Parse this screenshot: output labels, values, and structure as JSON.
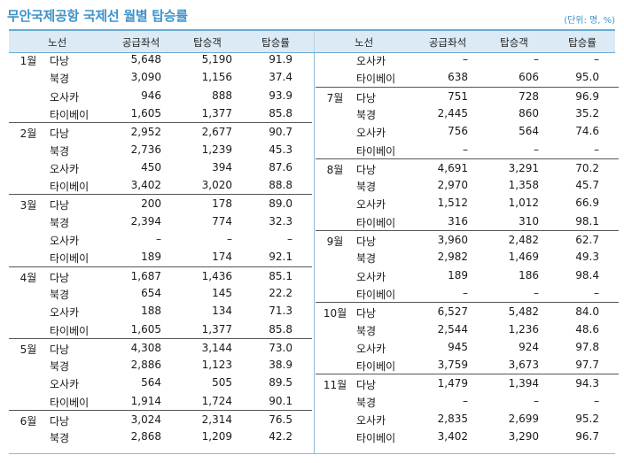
{
  "title": "무안국제공항 국제선 월별 탑승률",
  "unit": "(단위: 명, %)",
  "headers": {
    "route": "노선",
    "seats": "공급좌석",
    "passengers": "탑승객",
    "rate": "탑승률"
  },
  "left": [
    {
      "month": "1월",
      "rows": [
        {
          "route": "다낭",
          "seats": "5,648",
          "pax": "5,190",
          "rate": "91.9"
        },
        {
          "route": "북경",
          "seats": "3,090",
          "pax": "1,156",
          "rate": "37.4"
        },
        {
          "route": "오사카",
          "seats": "946",
          "pax": "888",
          "rate": "93.9"
        },
        {
          "route": "타이베이",
          "seats": "1,605",
          "pax": "1,377",
          "rate": "85.8"
        }
      ]
    },
    {
      "month": "2월",
      "rows": [
        {
          "route": "다낭",
          "seats": "2,952",
          "pax": "2,677",
          "rate": "90.7"
        },
        {
          "route": "북경",
          "seats": "2,736",
          "pax": "1,239",
          "rate": "45.3"
        },
        {
          "route": "오사카",
          "seats": "450",
          "pax": "394",
          "rate": "87.6"
        },
        {
          "route": "타이베이",
          "seats": "3,402",
          "pax": "3,020",
          "rate": "88.8"
        }
      ]
    },
    {
      "month": "3월",
      "rows": [
        {
          "route": "다낭",
          "seats": "200",
          "pax": "178",
          "rate": "89.0"
        },
        {
          "route": "북경",
          "seats": "2,394",
          "pax": "774",
          "rate": "32.3"
        },
        {
          "route": "오사카",
          "seats": "–",
          "pax": "–",
          "rate": "–"
        },
        {
          "route": "타이베이",
          "seats": "189",
          "pax": "174",
          "rate": "92.1"
        }
      ]
    },
    {
      "month": "4월",
      "rows": [
        {
          "route": "다낭",
          "seats": "1,687",
          "pax": "1,436",
          "rate": "85.1"
        },
        {
          "route": "북경",
          "seats": "654",
          "pax": "145",
          "rate": "22.2"
        },
        {
          "route": "오사카",
          "seats": "188",
          "pax": "134",
          "rate": "71.3"
        },
        {
          "route": "타이베이",
          "seats": "1,605",
          "pax": "1,377",
          "rate": "85.8"
        }
      ]
    },
    {
      "month": "5월",
      "rows": [
        {
          "route": "다낭",
          "seats": "4,308",
          "pax": "3,144",
          "rate": "73.0"
        },
        {
          "route": "북경",
          "seats": "2,886",
          "pax": "1,123",
          "rate": "38.9"
        },
        {
          "route": "오사카",
          "seats": "564",
          "pax": "505",
          "rate": "89.5"
        },
        {
          "route": "타이베이",
          "seats": "1,914",
          "pax": "1,724",
          "rate": "90.1"
        }
      ]
    },
    {
      "month": "6월",
      "rows": [
        {
          "route": "다낭",
          "seats": "3,024",
          "pax": "2,314",
          "rate": "76.5"
        },
        {
          "route": "북경",
          "seats": "2,868",
          "pax": "1,209",
          "rate": "42.2"
        }
      ]
    }
  ],
  "right": [
    {
      "month": "",
      "rows": [
        {
          "route": "오사카",
          "seats": "–",
          "pax": "–",
          "rate": "–"
        },
        {
          "route": "타이베이",
          "seats": "638",
          "pax": "606",
          "rate": "95.0"
        }
      ]
    },
    {
      "month": "7월",
      "rows": [
        {
          "route": "다낭",
          "seats": "751",
          "pax": "728",
          "rate": "96.9"
        },
        {
          "route": "북경",
          "seats": "2,445",
          "pax": "860",
          "rate": "35.2"
        },
        {
          "route": "오사카",
          "seats": "756",
          "pax": "564",
          "rate": "74.6"
        },
        {
          "route": "타이베이",
          "seats": "–",
          "pax": "–",
          "rate": "–"
        }
      ]
    },
    {
      "month": "8월",
      "rows": [
        {
          "route": "다낭",
          "seats": "4,691",
          "pax": "3,291",
          "rate": "70.2"
        },
        {
          "route": "북경",
          "seats": "2,970",
          "pax": "1,358",
          "rate": "45.7"
        },
        {
          "route": "오사카",
          "seats": "1,512",
          "pax": "1,012",
          "rate": "66.9"
        },
        {
          "route": "타이베이",
          "seats": "316",
          "pax": "310",
          "rate": "98.1"
        }
      ]
    },
    {
      "month": "9월",
      "rows": [
        {
          "route": "다낭",
          "seats": "3,960",
          "pax": "2,482",
          "rate": "62.7"
        },
        {
          "route": "북경",
          "seats": "2,982",
          "pax": "1,469",
          "rate": "49.3"
        },
        {
          "route": "오사카",
          "seats": "189",
          "pax": "186",
          "rate": "98.4"
        },
        {
          "route": "타이베이",
          "seats": "–",
          "pax": "–",
          "rate": "–"
        }
      ]
    },
    {
      "month": "10월",
      "rows": [
        {
          "route": "다낭",
          "seats": "6,527",
          "pax": "5,482",
          "rate": "84.0"
        },
        {
          "route": "북경",
          "seats": "2,544",
          "pax": "1,236",
          "rate": "48.6"
        },
        {
          "route": "오사카",
          "seats": "945",
          "pax": "924",
          "rate": "97.8"
        },
        {
          "route": "타이베이",
          "seats": "3,759",
          "pax": "3,673",
          "rate": "97.7"
        }
      ]
    },
    {
      "month": "11월",
      "rows": [
        {
          "route": "다낭",
          "seats": "1,479",
          "pax": "1,394",
          "rate": "94.3"
        },
        {
          "route": "북경",
          "seats": "–",
          "pax": "–",
          "rate": "–"
        },
        {
          "route": "오사카",
          "seats": "2,835",
          "pax": "2,699",
          "rate": "95.2"
        },
        {
          "route": "타이베이",
          "seats": "3,402",
          "pax": "3,290",
          "rate": "96.7"
        }
      ]
    }
  ]
}
